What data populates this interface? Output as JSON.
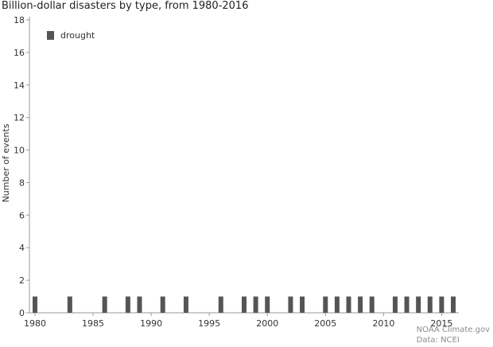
{
  "chart_data": {
    "type": "bar",
    "title": "Billion-dollar disasters by type, from 1980-2016",
    "xlabel": "",
    "ylabel": "Number of events",
    "ylim": [
      0,
      18
    ],
    "xlim": [
      1980,
      2016
    ],
    "yticks": [
      0,
      2,
      4,
      6,
      8,
      10,
      12,
      14,
      16,
      18
    ],
    "xticks": [
      1980,
      1985,
      1990,
      1995,
      2000,
      2005,
      2010,
      2015
    ],
    "grid": false,
    "legend_position": "top-left",
    "x": [
      1980,
      1983,
      1986,
      1988,
      1989,
      1991,
      1993,
      1996,
      1998,
      1999,
      2000,
      2002,
      2003,
      2005,
      2006,
      2007,
      2008,
      2009,
      2011,
      2012,
      2013,
      2014,
      2015,
      2016
    ],
    "series": [
      {
        "name": "drought",
        "color": "#555555",
        "values": [
          1,
          1,
          1,
          1,
          1,
          1,
          1,
          1,
          1,
          1,
          1,
          1,
          1,
          1,
          1,
          1,
          1,
          1,
          1,
          1,
          1,
          1,
          1,
          1
        ]
      }
    ]
  },
  "credits": {
    "line1": "NOAA Climate.gov",
    "line2": "Data: NCEI"
  }
}
